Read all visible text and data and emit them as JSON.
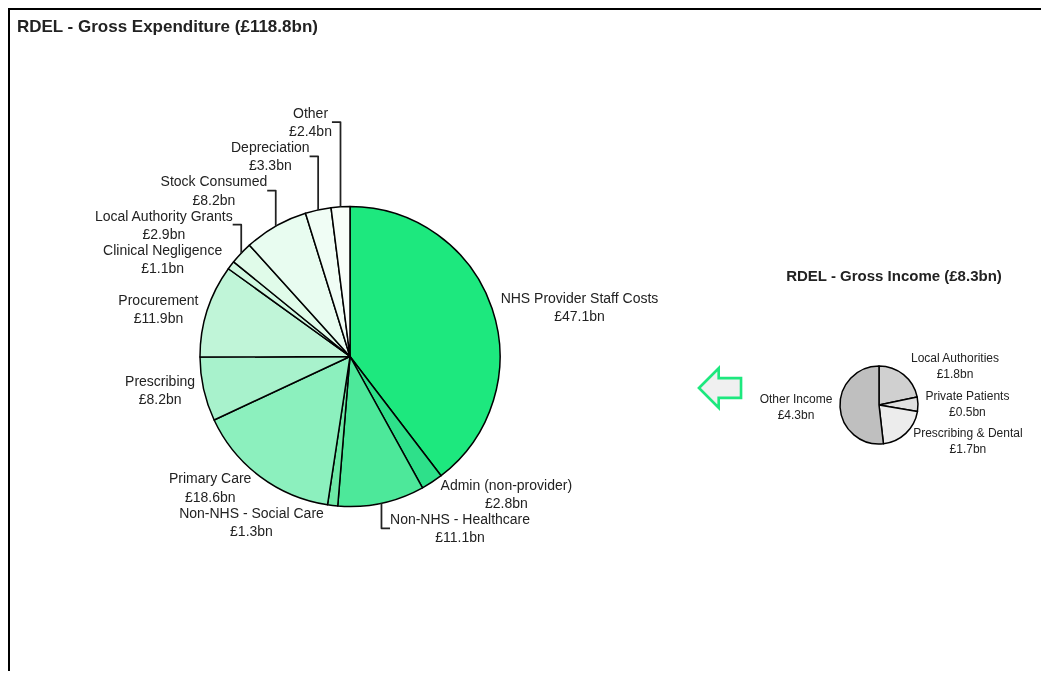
{
  "chart_data": [
    {
      "type": "pie",
      "title": "RDEL - Gross Expenditure (£118.8bn)",
      "categories": [
        "NHS Provider Staff Costs",
        "Admin (non-provider)",
        "Non-NHS - Healthcare",
        "Non-NHS - Social Care",
        "Primary Care",
        "Prescribing",
        "Procurement",
        "Clinical Negligence",
        "Local Authority Grants",
        "Stock Consumed",
        "Depreciation",
        "Other"
      ],
      "values": [
        47.1,
        2.8,
        11.1,
        1.3,
        18.6,
        8.2,
        11.9,
        1.1,
        2.9,
        8.2,
        3.3,
        2.4
      ],
      "value_labels": [
        "£47.1bn",
        "£2.8bn",
        "£11.1bn",
        "£1.3bn",
        "£18.6bn",
        "£8.2bn",
        "£11.9bn",
        "£1.1bn",
        "£2.9bn",
        "£8.2bn",
        "£3.3bn",
        "£2.4bn"
      ],
      "colors": [
        "#1de87e",
        "#2ee08a",
        "#4de89a",
        "#6deaa6",
        "#8cf0be",
        "#a8f2cc",
        "#c0f5d8",
        "#d0f8e0",
        "#e0fbe9",
        "#e8fcf0",
        "#f0fdf5",
        "#f8fef9"
      ],
      "legend": false
    },
    {
      "type": "pie",
      "title": "RDEL - Gross Income (£8.3bn)",
      "categories": [
        "Local Authorities",
        "Private Patients",
        "Prescribing & Dental",
        "Other Income"
      ],
      "values": [
        1.8,
        0.5,
        1.7,
        4.3
      ],
      "value_labels": [
        "£1.8bn",
        "£0.5bn",
        "£1.7bn",
        "£4.3bn"
      ],
      "colors": [
        "#d0d0d0",
        "#e0e0e0",
        "#ececec",
        "#bfbfbf"
      ],
      "legend": false
    }
  ]
}
